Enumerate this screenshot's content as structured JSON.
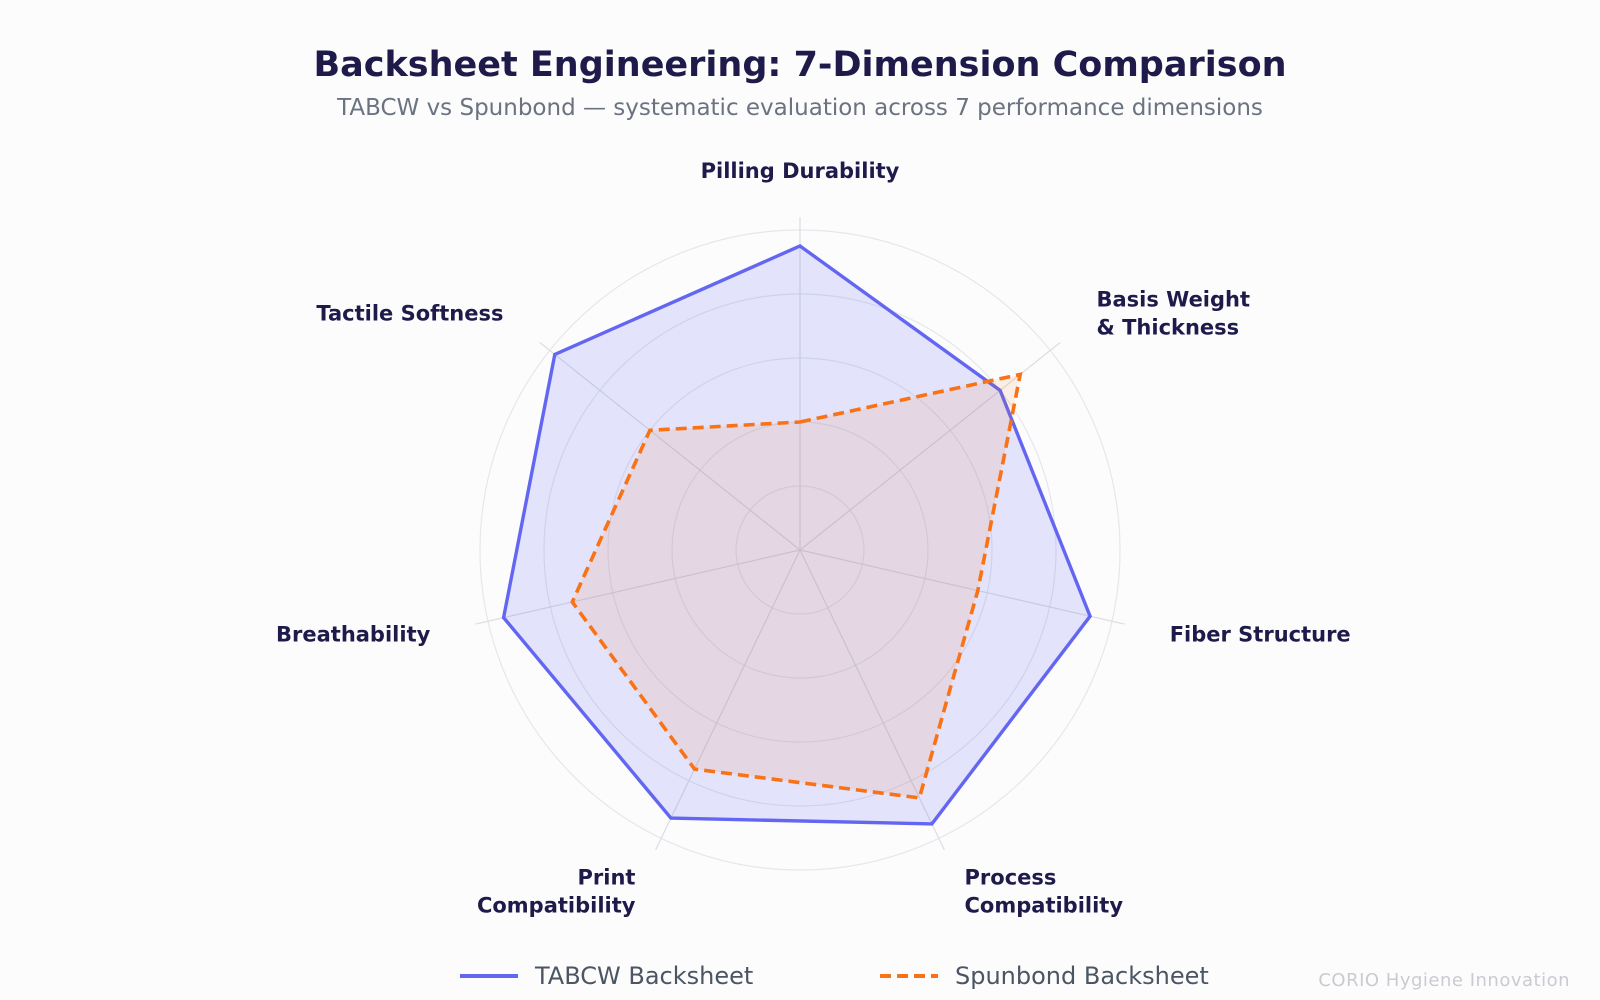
{
  "chart_data": {
    "type": "radar",
    "title": "Backsheet Engineering: 7-Dimension Comparison",
    "subtitle": "TABCW vs Spunbond — systematic evaluation across 7 performance dimensions",
    "axes": [
      {
        "label": [
          "Pilling Durability"
        ]
      },
      {
        "label": [
          "Basis Weight",
          "& Thickness"
        ]
      },
      {
        "label": [
          "Fiber Structure"
        ]
      },
      {
        "label": [
          "Process",
          "Compatibility"
        ]
      },
      {
        "label": [
          "Print",
          "Compatibility"
        ]
      },
      {
        "label": [
          "Breathability"
        ]
      },
      {
        "label": [
          "Tactile Softness"
        ]
      }
    ],
    "rmax": 10,
    "rings": [
      2,
      4,
      6,
      8,
      10
    ],
    "grid": true,
    "legend_position": "bottom-center",
    "series": [
      {
        "name": "TABCW Backsheet",
        "values": [
          9.5,
          8.0,
          9.3,
          9.5,
          9.3,
          9.5,
          9.8
        ],
        "color": "#6366f1",
        "fill": "rgba(99,102,241,0.16)",
        "dash": false
      },
      {
        "name": "Spunbond Backsheet",
        "values": [
          4.0,
          8.8,
          5.7,
          8.6,
          7.6,
          7.3,
          6.0
        ],
        "color": "#f97316",
        "fill": "rgba(249,115,22,0.10)",
        "dash": true
      }
    ],
    "watermark": "CORIO Hygiene Innovation"
  }
}
